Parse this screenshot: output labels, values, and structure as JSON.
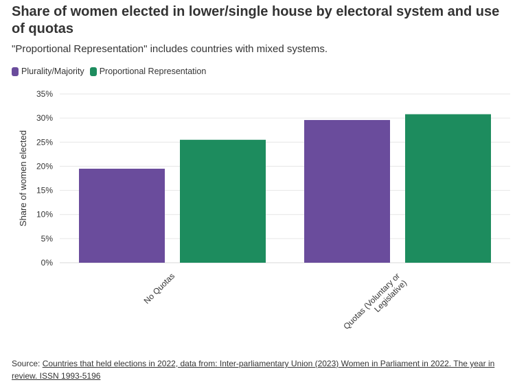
{
  "header": {
    "title": "Share of women elected in lower/single house by electoral system and use of quotas",
    "subtitle": "\"Proportional Representation\" includes countries with mixed systems."
  },
  "colors": {
    "plurality": "#6a4c9c",
    "proportional": "#1d8c5e",
    "grid": "#e6e6e6",
    "axis": "#d9d9d9",
    "text": "#333333"
  },
  "chart_data": {
    "type": "bar",
    "title": "Share of women elected in lower/single house by electoral system and use of quotas",
    "subtitle": "\"Proportional Representation\" includes countries with mixed systems.",
    "categories": [
      "No Quotas",
      "Quotas (Voluntary or Legislative)"
    ],
    "category_lines": [
      [
        "No Quotas"
      ],
      [
        "Quotas (Voluntary or",
        "Legislative)"
      ]
    ],
    "series": [
      {
        "name": "Plurality/Majority",
        "color": "#6a4c9c",
        "values": [
          19.5,
          29.6
        ]
      },
      {
        "name": "Proportional Representation",
        "color": "#1d8c5e",
        "values": [
          25.5,
          30.8
        ]
      }
    ],
    "xlabel": "",
    "ylabel": "Share of women elected",
    "ylim": [
      0,
      35
    ],
    "yticks": [
      0,
      5,
      10,
      15,
      20,
      25,
      30,
      35
    ],
    "ytick_labels": [
      "0%",
      "5%",
      "10%",
      "15%",
      "20%",
      "25%",
      "30%",
      "35%"
    ],
    "grid": true,
    "legend": "top-left"
  },
  "source": {
    "prefix": "Source: ",
    "link_text": "Countries that held elections in 2022, data from: Inter-parliamentary Union (2023) Women in Parliament in 2022. The year in review. ISSN 1993-5196"
  }
}
